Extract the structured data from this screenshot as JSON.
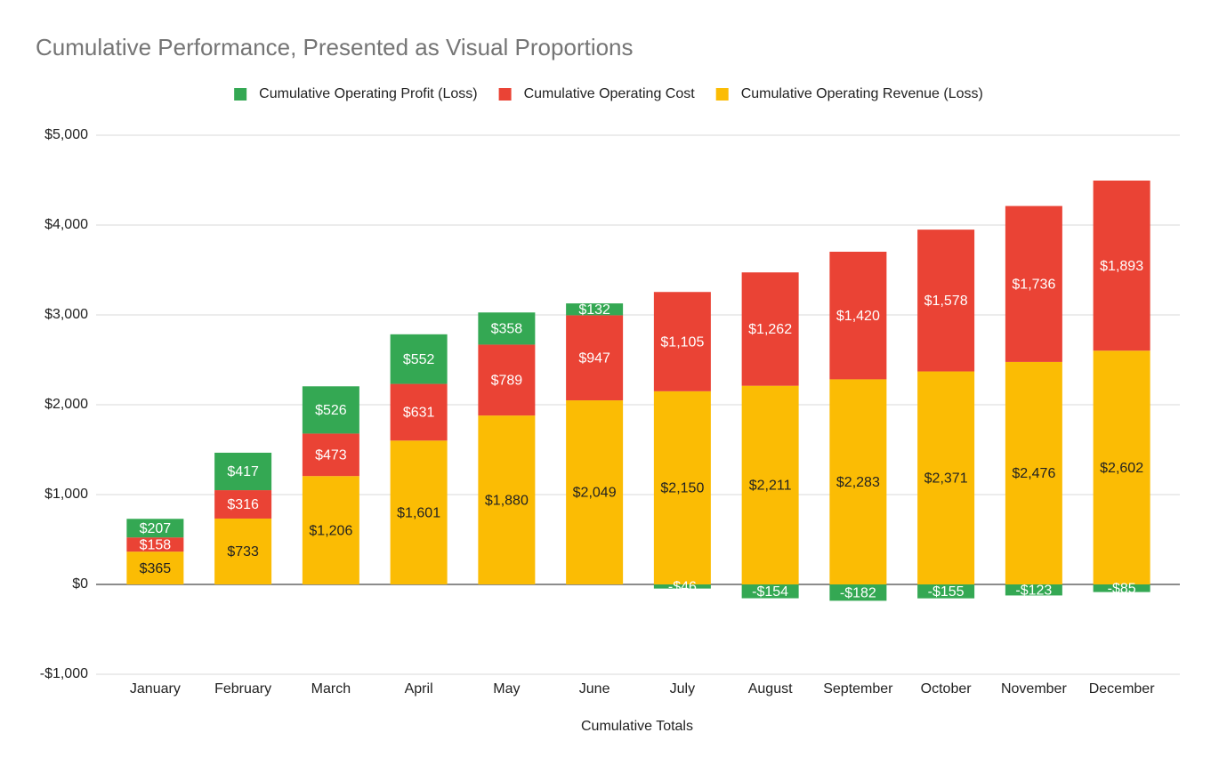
{
  "chart_data": {
    "type": "stacked_bar",
    "title": "Cumulative Performance, Presented as Visual Proportions",
    "x_label": "Cumulative Totals",
    "categories": [
      "January",
      "February",
      "March",
      "April",
      "May",
      "June",
      "July",
      "August",
      "September",
      "October",
      "November",
      "December"
    ],
    "series": [
      {
        "name": "Cumulative Operating Profit (Loss)",
        "color": "#34a853",
        "values": [
          207,
          417,
          526,
          552,
          358,
          132,
          -46,
          -154,
          -182,
          -155,
          -123,
          -85
        ],
        "value_labels": [
          "$207",
          "$417",
          "$526",
          "$552",
          "$358",
          "$132",
          "-$46",
          "-$154",
          "-$182",
          "-$155",
          "-$123",
          "-$85"
        ]
      },
      {
        "name": "Cumulative Operating Cost",
        "color": "#ea4335",
        "values": [
          158,
          316,
          473,
          631,
          789,
          947,
          1105,
          1262,
          1420,
          1578,
          1736,
          1893
        ],
        "value_labels": [
          "$158",
          "$316",
          "$473",
          "$631",
          "$789",
          "$947",
          "$1,105",
          "$1,262",
          "$1,420",
          "$1,578",
          "$1,736",
          "$1,893"
        ]
      },
      {
        "name": "Cumulative Operating Revenue (Loss)",
        "color": "#fbbc04",
        "values": [
          365,
          733,
          1206,
          1601,
          1880,
          2049,
          2150,
          2211,
          2283,
          2371,
          2476,
          2602
        ],
        "value_labels": [
          "$365",
          "$733",
          "$1,206",
          "$1,601",
          "$1,880",
          "$2,049",
          "$2,150",
          "$2,211",
          "$2,283",
          "$2,371",
          "$2,476",
          "$2,602"
        ]
      }
    ],
    "ylim": [
      -1000,
      5000
    ],
    "yticks": [
      {
        "value": -1000,
        "label": "-$1,000"
      },
      {
        "value": 0,
        "label": "$0"
      },
      {
        "value": 1000,
        "label": "$1,000"
      },
      {
        "value": 2000,
        "label": "$2,000"
      },
      {
        "value": 3000,
        "label": "$3,000"
      },
      {
        "value": 4000,
        "label": "$4,000"
      },
      {
        "value": 5000,
        "label": "$5,000"
      }
    ],
    "grid": true,
    "legend": "top"
  }
}
